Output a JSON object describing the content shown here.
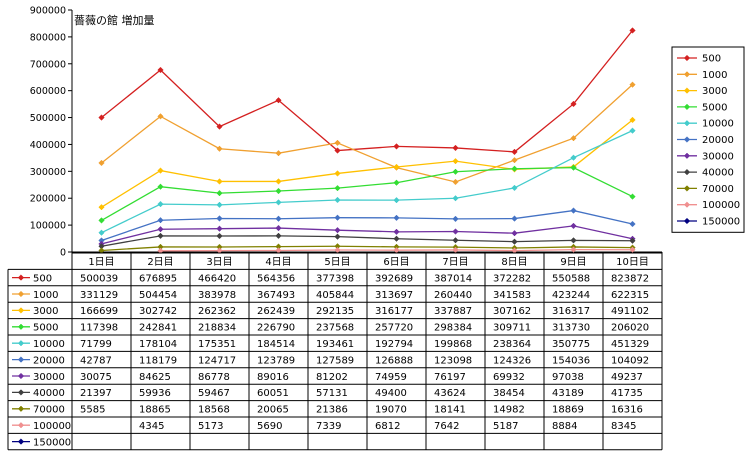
{
  "chart_data": {
    "type": "line",
    "title": "薔薇の館 増加量",
    "categories": [
      "1日目",
      "2日目",
      "3日目",
      "4日目",
      "5日目",
      "6日目",
      "7日目",
      "8日目",
      "9日目",
      "10日目"
    ],
    "ylim": [
      0,
      900000
    ],
    "yticks": [
      0,
      100000,
      200000,
      300000,
      400000,
      500000,
      600000,
      700000,
      800000,
      900000
    ],
    "ytick_labels": [
      "0",
      "100000",
      "200000",
      "300000",
      "400000",
      "500000",
      "600000",
      "700000",
      "800000",
      "900000"
    ],
    "grid": false,
    "legend": "right",
    "series": [
      {
        "name": "500",
        "color": "#d42020",
        "values": [
          500039,
          676895,
          466420,
          564356,
          377398,
          392689,
          387014,
          372282,
          550588,
          823872
        ],
        "labels": [
          "500039",
          "676895",
          "466420",
          "564356",
          "377398",
          "392689",
          "387014",
          "372282",
          "550588",
          "823872"
        ]
      },
      {
        "name": "1000",
        "color": "#f0a030",
        "values": [
          331129,
          504454,
          383978,
          367493,
          405844,
          313697,
          260440,
          341583,
          423244,
          622315
        ],
        "labels": [
          "331129",
          "504454",
          "383978",
          "367493",
          "405844",
          "313697",
          "260440",
          "341583",
          "423244",
          "622315"
        ]
      },
      {
        "name": "3000",
        "color": "#ffc000",
        "values": [
          166699,
          302742,
          262362,
          262439,
          292135,
          316177,
          337887,
          307162,
          316317,
          491102
        ],
        "labels": [
          "166699",
          "302742",
          "262362",
          "262439",
          "292135",
          "316177",
          "337887",
          "307162",
          "316317",
          "491102"
        ]
      },
      {
        "name": "5000",
        "color": "#33dd33",
        "values": [
          117398,
          242841,
          218834,
          226790,
          237568,
          257720,
          298384,
          309711,
          313730,
          206020
        ],
        "labels": [
          "117398",
          "242841",
          "218834",
          "226790",
          "237568",
          "257720",
          "298384",
          "309711",
          "313730",
          "206020"
        ]
      },
      {
        "name": "10000",
        "color": "#44cccc",
        "values": [
          71799,
          178104,
          175351,
          184514,
          193461,
          192794,
          199868,
          238364,
          350775,
          451329
        ],
        "labels": [
          "71799",
          "178104",
          "175351",
          "184514",
          "193461",
          "192794",
          "199868",
          "238364",
          "350775",
          "451329"
        ]
      },
      {
        "name": "20000",
        "color": "#4472c4",
        "values": [
          42787,
          118179,
          124717,
          123789,
          127589,
          126888,
          123098,
          124326,
          154036,
          104092
        ],
        "labels": [
          "42787",
          "118179",
          "124717",
          "123789",
          "127589",
          "126888",
          "123098",
          "124326",
          "154036",
          "104092"
        ]
      },
      {
        "name": "30000",
        "color": "#7030a0",
        "values": [
          30075,
          84625,
          86778,
          89016,
          81202,
          74959,
          76197,
          69932,
          97038,
          49237
        ],
        "labels": [
          "30075",
          "84625",
          "86778",
          "89016",
          "81202",
          "74959",
          "76197",
          "69932",
          "97038",
          "49237"
        ]
      },
      {
        "name": "40000",
        "color": "#404040",
        "values": [
          21397,
          59936,
          59467,
          60051,
          57131,
          49400,
          43624,
          38454,
          43189,
          41735
        ],
        "labels": [
          "21397",
          "59936",
          "59467",
          "60051",
          "57131",
          "49400",
          "43624",
          "38454",
          "43189",
          "41735"
        ]
      },
      {
        "name": "70000",
        "color": "#808000",
        "values": [
          5585,
          18865,
          18568,
          20065,
          21386,
          19070,
          18141,
          14982,
          18869,
          16316
        ],
        "labels": [
          "5585",
          "18865",
          "18568",
          "20065",
          "21386",
          "19070",
          "18141",
          "14982",
          "18869",
          "16316"
        ]
      },
      {
        "name": "100000",
        "color": "#f09090",
        "values": [
          null,
          4345,
          5173,
          5690,
          7339,
          6812,
          7642,
          5187,
          8884,
          8345
        ],
        "labels": [
          "",
          "4345",
          "5173",
          "5690",
          "7339",
          "6812",
          "7642",
          "5187",
          "8884",
          "8345"
        ]
      },
      {
        "name": "150000",
        "color": "#000080",
        "values": [
          null,
          null,
          null,
          null,
          null,
          null,
          null,
          null,
          null,
          null
        ],
        "labels": [
          "",
          "",
          "",
          "",
          "",
          "",
          "",
          "",
          "",
          ""
        ]
      }
    ]
  }
}
